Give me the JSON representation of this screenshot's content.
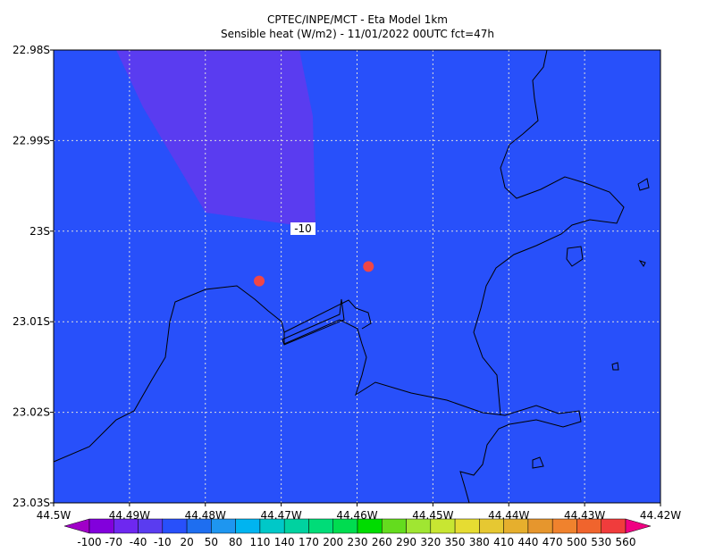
{
  "title": "CPTEC/INPE/MCT -  Eta Model 1km",
  "subtitle": "Sensible heat (W/m2) - 11/01/2022 00UTC fct=47h",
  "map": {
    "xlim": [
      -44.5,
      -44.42
    ],
    "ylim": [
      -23.03,
      -22.98
    ],
    "xticks": [
      {
        "value": -44.5,
        "label": "44.5W"
      },
      {
        "value": -44.49,
        "label": "44.49W"
      },
      {
        "value": -44.48,
        "label": "44.48W"
      },
      {
        "value": -44.47,
        "label": "44.47W"
      },
      {
        "value": -44.46,
        "label": "44.46W"
      },
      {
        "value": -44.45,
        "label": "44.45W"
      },
      {
        "value": -44.44,
        "label": "44.44W"
      },
      {
        "value": -44.43,
        "label": "44.43W"
      },
      {
        "value": -44.42,
        "label": "44.42W"
      }
    ],
    "yticks": [
      {
        "value": -22.98,
        "label": "22.98S"
      },
      {
        "value": -22.99,
        "label": "22.99S"
      },
      {
        "value": -23,
        "label": "23S"
      },
      {
        "value": -23.01,
        "label": "23.01S"
      },
      {
        "value": -23.02,
        "label": "23.02S"
      },
      {
        "value": -23.03,
        "label": "23.03S"
      }
    ],
    "grid": true,
    "contour_label": -10,
    "markers": [
      {
        "lon": -44.4729,
        "lat": -23.0055,
        "color": "#f04646"
      },
      {
        "lon": -44.4585,
        "lat": -23.0039,
        "color": "#f04646"
      }
    ]
  },
  "colorbar": {
    "levels": [
      -100,
      -70,
      -40,
      -10,
      20,
      50,
      80,
      110,
      140,
      170,
      200,
      230,
      260,
      290,
      320,
      350,
      380,
      410,
      440,
      470,
      500,
      530,
      560
    ],
    "colors": [
      "#a000c8",
      "#8200dc",
      "#6e28f0",
      "#5a3cf0",
      "#2850fa",
      "#1e6ef0",
      "#1e96f0",
      "#00b4f0",
      "#00c8c8",
      "#00d2a0",
      "#00dc78",
      "#00dc50",
      "#00dc00",
      "#64dc1e",
      "#a0e632",
      "#c8e632",
      "#e6dc32",
      "#e6c832",
      "#e6af2d",
      "#e6962d",
      "#f0822d",
      "#f0642d",
      "#f03c3c",
      "#f00082"
    ]
  }
}
